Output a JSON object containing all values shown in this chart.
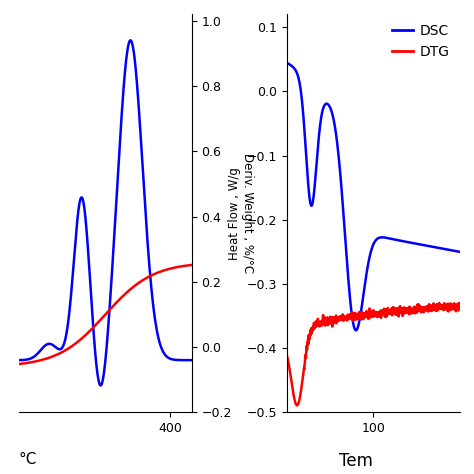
{
  "left_plot": {
    "ylabel": "Deriv. Weight , %/°C",
    "xlabel": "°C",
    "xlim": [
      50,
      450
    ],
    "ylim": [
      -0.2,
      1.02
    ],
    "yticks": [
      -0.2,
      0.0,
      0.2,
      0.4,
      0.6,
      0.8,
      1.0
    ],
    "xtick_val": 400,
    "blue_color": "#0000FF",
    "red_color": "#FF0000"
  },
  "right_plot": {
    "ylabel": "Heat Flow , W/g",
    "xlabel": "Tem",
    "xlim": [
      0,
      200
    ],
    "ylim": [
      -0.5,
      0.12
    ],
    "yticks": [
      -0.5,
      -0.4,
      -0.3,
      -0.2,
      -0.1,
      0.0,
      0.1
    ],
    "xtick_val": 100,
    "blue_color": "#0000FF",
    "red_color": "#FF0000",
    "legend_labels": [
      "DSC",
      "DTG"
    ],
    "legend_colors": [
      "#0000FF",
      "#FF0000"
    ]
  },
  "background_color": "#FFFFFF",
  "line_width": 1.8
}
